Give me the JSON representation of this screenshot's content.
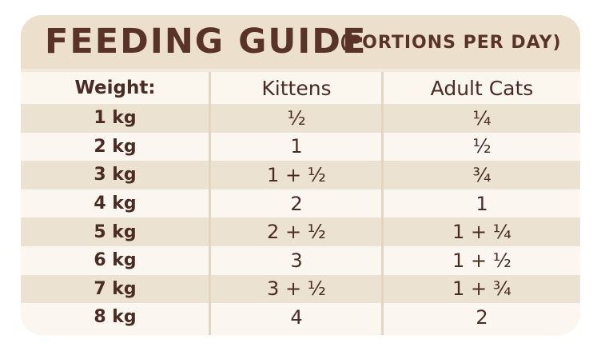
{
  "title": "FEEDING GUIDE",
  "subtitle": "(PORTIONS PER DAY)",
  "columns": [
    "Weight:",
    "Kittens",
    "Adult Cats"
  ],
  "rows": [
    {
      "weight": "1 kg",
      "kittens": "½",
      "adult": "¼"
    },
    {
      "weight": "2 kg",
      "kittens": "1",
      "adult": "½"
    },
    {
      "weight": "3 kg",
      "kittens": "1 + ½",
      "adult": "¾"
    },
    {
      "weight": "4 kg",
      "kittens": "2",
      "adult": "1"
    },
    {
      "weight": "5 kg",
      "kittens": "2 + ½",
      "adult": "1 + ¼"
    },
    {
      "weight": "6 kg",
      "kittens": "3",
      "adult": "1 + ½"
    },
    {
      "weight": "7 kg",
      "kittens": "3 + ½",
      "adult": "1 + ¾"
    },
    {
      "weight": "8 kg",
      "kittens": "4",
      "adult": "2"
    }
  ],
  "colors": {
    "text": "#4a2c24",
    "title": "#5a3328",
    "banner": "#ece0cd",
    "stripe_dark": "#ece2d2",
    "stripe_light": "#fbf7f0",
    "divider": "#e3d5c0"
  }
}
